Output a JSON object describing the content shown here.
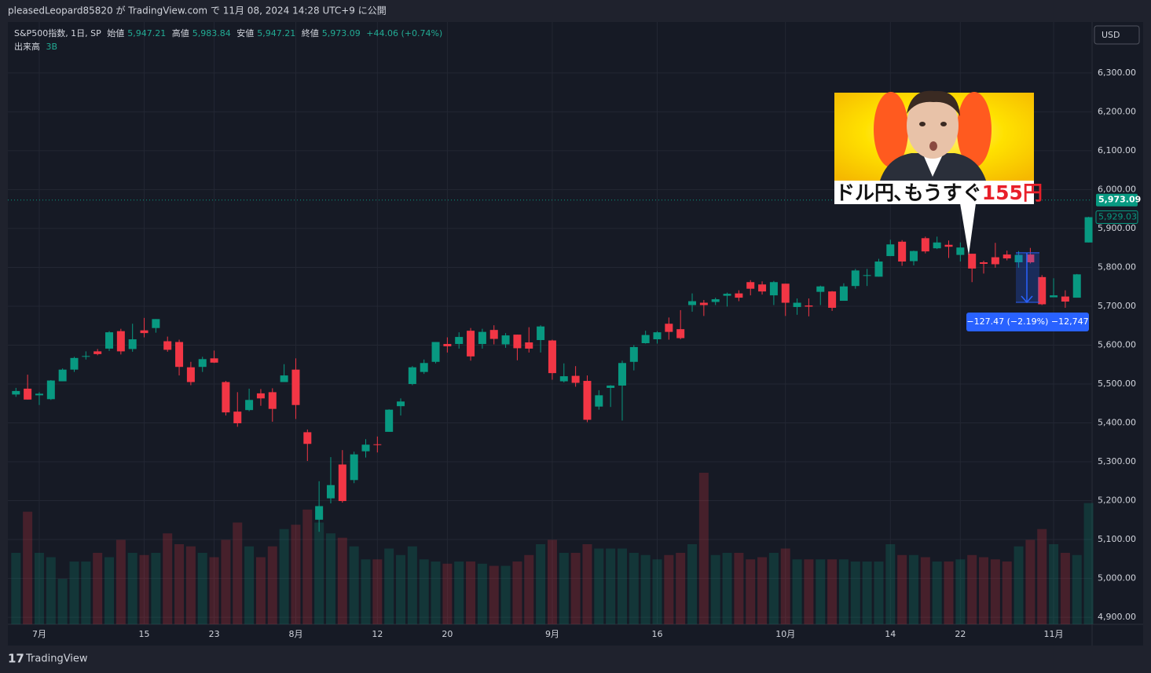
{
  "header": {
    "published": "pleasedLeopard85820 が TradingView.com で 11月 08, 2024 14:28 UTC+9 に公開"
  },
  "chart_data": {
    "type": "candlestick",
    "title": "S&P500指数, 1日, SP",
    "legend": {
      "open_label": "始値",
      "open_value": "5,947.21",
      "high_label": "高値",
      "high_value": "5,983.84",
      "low_label": "安値",
      "low_value": "5,947.21",
      "close_label": "終値",
      "change": "+44.06 (+0.74%)"
    },
    "volume_title": "出来高",
    "volume_value": "3B",
    "currency": "USD",
    "categories": [
      null,
      null,
      "7月",
      null,
      null,
      null,
      null,
      null,
      null,
      null,
      null,
      "15",
      null,
      null,
      null,
      null,
      null,
      "23",
      null,
      null,
      null,
      null,
      null,
      null,
      "8月",
      null,
      null,
      null,
      null,
      null,
      null,
      "12",
      null,
      null,
      null,
      null,
      null,
      "20",
      null,
      null,
      null,
      null,
      null,
      null,
      null,
      null,
      "9月",
      null,
      null,
      null,
      null,
      null,
      null,
      null,
      null,
      "16",
      null,
      null,
      null,
      null,
      null,
      null,
      null,
      null,
      null,
      null,
      "10月",
      null,
      null,
      null,
      null,
      null,
      null,
      null,
      null,
      "14",
      null,
      null,
      null,
      null,
      null,
      "22",
      null,
      null,
      null,
      null,
      null,
      null,
      null,
      "11月",
      null,
      null,
      null
    ],
    "open": [
      5473,
      5488,
      5471,
      5461,
      5507,
      5537,
      5572,
      5584,
      5591,
      5636,
      5590,
      5638,
      5644,
      5610,
      5608,
      5543,
      5544,
      5566,
      5505,
      5429,
      5433,
      5476,
      5479,
      5505,
      5537,
      5376,
      5151,
      5206,
      5293,
      5253,
      5327,
      5345,
      5377,
      5443,
      5500,
      5531,
      5557,
      5603,
      5603,
      5637,
      5603,
      5639,
      5602,
      5627,
      5607,
      5613,
      5612,
      5507,
      5521,
      5508,
      5442,
      5490,
      5496,
      5557,
      5605,
      5615,
      5655,
      5641,
      5703,
      5709,
      5711,
      5727,
      5733,
      5762,
      5756,
      5728,
      5758,
      5698,
      5702,
      5737,
      5738,
      5714,
      5752,
      5778,
      5776,
      5829,
      5866,
      5816,
      5875,
      5849,
      5858,
      5832,
      5835,
      5813,
      5826,
      5833,
      5813,
      5833,
      5775,
      5723,
      5725,
      5722,
      5864
    ],
    "high": [
      5490,
      5524,
      5479,
      5510,
      5540,
      5570,
      5584,
      5590,
      5636,
      5642,
      5655,
      5670,
      5667,
      5622,
      5614,
      5557,
      5570,
      5586,
      5508,
      5479,
      5488,
      5487,
      5489,
      5551,
      5566,
      5383,
      5250,
      5312,
      5330,
      5326,
      5358,
      5365,
      5435,
      5463,
      5546,
      5563,
      5608,
      5620,
      5633,
      5644,
      5642,
      5651,
      5631,
      5627,
      5646,
      5651,
      5614,
      5553,
      5546,
      5522,
      5484,
      5497,
      5560,
      5600,
      5637,
      5636,
      5671,
      5690,
      5733,
      5716,
      5722,
      5735,
      5741,
      5767,
      5764,
      5765,
      5758,
      5720,
      5720,
      5753,
      5739,
      5759,
      5796,
      5796,
      5822,
      5871,
      5870,
      5843,
      5879,
      5879,
      5869,
      5864,
      5835,
      5817,
      5863,
      5843,
      5842,
      5850,
      5780,
      5772,
      5741,
      5783,
      5930
    ],
    "low": [
      5467,
      5460,
      5446,
      5459,
      5507,
      5531,
      5563,
      5574,
      5585,
      5576,
      5583,
      5620,
      5632,
      5583,
      5522,
      5497,
      5531,
      5554,
      5419,
      5390,
      5430,
      5444,
      5403,
      5505,
      5410,
      5302,
      5120,
      5193,
      5195,
      5245,
      5311,
      5324,
      5377,
      5419,
      5497,
      5526,
      5553,
      5581,
      5591,
      5560,
      5591,
      5602,
      5593,
      5561,
      5581,
      5581,
      5511,
      5504,
      5493,
      5402,
      5434,
      5441,
      5406,
      5535,
      5604,
      5604,
      5614,
      5615,
      5686,
      5675,
      5703,
      5699,
      5713,
      5728,
      5730,
      5703,
      5675,
      5678,
      5674,
      5703,
      5688,
      5714,
      5745,
      5752,
      5776,
      5829,
      5804,
      5805,
      5836,
      5847,
      5824,
      5815,
      5762,
      5784,
      5799,
      5818,
      5799,
      5810,
      5703,
      5723,
      5696,
      5722,
      5864
    ],
    "close": [
      5482,
      5460,
      5475,
      5509,
      5537,
      5567,
      5572,
      5577,
      5633,
      5584,
      5615,
      5631,
      5667,
      5588,
      5544,
      5505,
      5564,
      5555,
      5427,
      5399,
      5459,
      5463,
      5436,
      5522,
      5446,
      5346,
      5186,
      5240,
      5199,
      5319,
      5344,
      5344,
      5434,
      5455,
      5543,
      5554,
      5608,
      5597,
      5621,
      5571,
      5634,
      5616,
      5625,
      5592,
      5591,
      5648,
      5528,
      5520,
      5503,
      5408,
      5471,
      5496,
      5554,
      5595,
      5626,
      5633,
      5634,
      5618,
      5713,
      5703,
      5718,
      5732,
      5722,
      5745,
      5738,
      5762,
      5709,
      5709,
      5699,
      5751,
      5696,
      5751,
      5792,
      5780,
      5815,
      5859,
      5815,
      5842,
      5841,
      5864,
      5853,
      5851,
      5797,
      5809,
      5808,
      5823,
      5832,
      5813,
      5705,
      5728,
      5712,
      5782,
      5929.03
    ],
    "close_tag": "5,929.03",
    "volume": [
      3.3,
      5.2,
      3.3,
      3.1,
      2.1,
      2.9,
      2.9,
      3.3,
      3.1,
      3.9,
      3.3,
      3.2,
      3.3,
      4.2,
      3.7,
      3.6,
      3.3,
      3.1,
      3.9,
      4.7,
      3.6,
      3.1,
      3.6,
      4.4,
      4.6,
      5.3,
      4.7,
      4.2,
      4.0,
      3.6,
      3.0,
      3.0,
      3.5,
      3.2,
      3.6,
      3.0,
      2.9,
      2.8,
      2.9,
      2.9,
      2.8,
      2.7,
      2.7,
      2.9,
      3.2,
      3.7,
      3.9,
      3.3,
      3.3,
      3.7,
      3.5,
      3.5,
      3.5,
      3.3,
      3.2,
      3.0,
      3.2,
      3.3,
      3.7,
      7.0,
      3.2,
      3.3,
      3.3,
      3.0,
      3.1,
      3.3,
      3.5,
      3.0,
      3.0,
      3.0,
      3.0,
      3.0,
      2.9,
      2.9,
      2.9,
      3.7,
      3.2,
      3.2,
      3.1,
      2.9,
      2.9,
      3.0,
      3.2,
      3.1,
      3.0,
      2.9,
      3.6,
      3.9,
      4.4,
      3.7,
      3.3,
      3.2,
      5.6
    ],
    "up_color": "#089981",
    "down_color": "#f23645",
    "ylim": [
      4882,
      6431
    ],
    "yticks": [
      {
        "value": 4900,
        "label": "4,900.00"
      },
      {
        "value": 5000,
        "label": "5,000.00"
      },
      {
        "value": 5100,
        "label": "5,100.00"
      },
      {
        "value": 5200,
        "label": "5,200.00"
      },
      {
        "value": 5300,
        "label": "5,300.00"
      },
      {
        "value": 5400,
        "label": "5,400.00"
      },
      {
        "value": 5500,
        "label": "5,500.00"
      },
      {
        "value": 5600,
        "label": "5,600.00"
      },
      {
        "value": 5700,
        "label": "5,700.00"
      },
      {
        "value": 5800,
        "label": "5,800.00"
      },
      {
        "value": 5900,
        "label": "5,900.00"
      },
      {
        "value": 6000,
        "label": "6,000.00"
      },
      {
        "value": 6100,
        "label": "6,100.00"
      },
      {
        "value": 6200,
        "label": "6,200.00"
      },
      {
        "value": 6300,
        "label": "6,300.00"
      }
    ],
    "grid": true,
    "last_price": {
      "value": 5973.09,
      "label": "5,973.09"
    },
    "measure": {
      "from": 5837.6,
      "to": 5710.13,
      "label": "−127.47 (−2.19%) −12,747"
    },
    "annotation": {
      "caption": "ドル円､もうすぐ",
      "caption_highlight": "155円"
    }
  },
  "footer": {
    "brand": "TradingView"
  }
}
